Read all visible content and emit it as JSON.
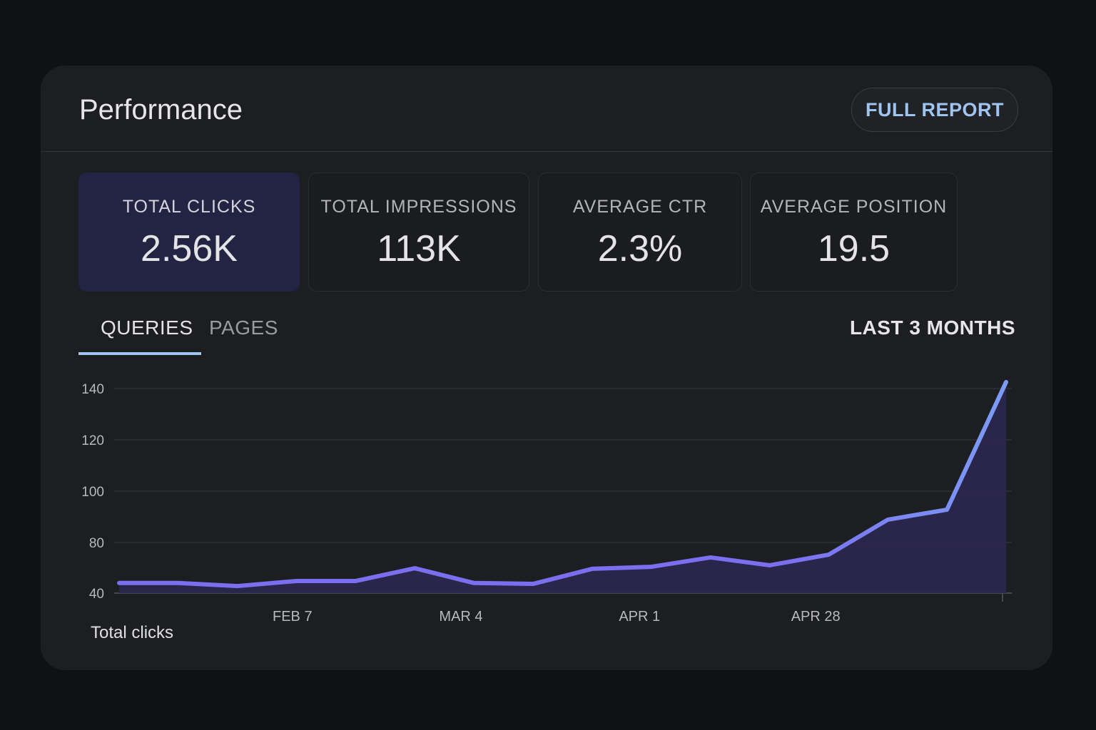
{
  "header": {
    "title": "Performance",
    "full_report_label": "FULL REPORT"
  },
  "metrics": [
    {
      "label": "TOTAL CLICKS",
      "value": "2.56K",
      "active": true
    },
    {
      "label": "TOTAL IMPRESSIONS",
      "value": "113K",
      "active": false
    },
    {
      "label": "AVERAGE CTR",
      "value": "2.3%",
      "active": false
    },
    {
      "label": "AVERAGE POSITION",
      "value": "19.5",
      "active": false
    }
  ],
  "tabs": [
    {
      "label": "QUERIES",
      "active": true
    },
    {
      "label": "PAGES",
      "active": false
    }
  ],
  "range_label": "LAST 3 MONTHS",
  "colors": {
    "line": "#7b6ff0",
    "line_end": "#7c9cf5",
    "fill": "#2c2650",
    "accent": "#9fc4ef"
  },
  "chart_data": {
    "type": "area",
    "series": [
      {
        "name": "Total clicks",
        "values": [
          48,
          48,
          45.6,
          49.6,
          49.6,
          59.7,
          48,
          47.3,
          59.2,
          60.8,
          68.2,
          62,
          70.4,
          88.9,
          92.8,
          142.5
        ]
      }
    ],
    "x": [
      0,
      1,
      2,
      3,
      4,
      5,
      6,
      7,
      8,
      9,
      10,
      11,
      12,
      13,
      14,
      15
    ],
    "x_ticks": [
      {
        "label": "FEB 7",
        "at": 2.93
      },
      {
        "label": "MAR 4",
        "at": 5.78
      },
      {
        "label": "APR 1",
        "at": 8.8
      },
      {
        "label": "APR 28",
        "at": 11.78
      }
    ],
    "y_ticks": [
      "40",
      "80",
      "100",
      "120",
      "140"
    ],
    "y_tick_values": [
      40,
      80,
      100,
      120,
      140
    ],
    "legend": "Total clicks",
    "grid": true
  }
}
